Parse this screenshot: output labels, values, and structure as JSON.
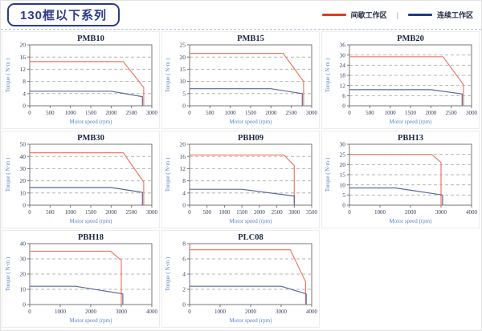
{
  "page": {
    "title": "130框以下系列"
  },
  "legend": {
    "items": [
      {
        "label": "间歇工作区",
        "color": "#e23c1c"
      },
      {
        "label": "连续工作区",
        "color": "#1e3a8a"
      }
    ],
    "separator": "|"
  },
  "colors": {
    "accent_blue": "#2b3a8c",
    "line_red": "#ed7a66",
    "line_blue": "#5a6899",
    "grid": "#b6b6b6",
    "frame": "#777777",
    "tick_text": "#39425e",
    "axis_label": "#5b84c8",
    "title_text": "#1c2742"
  },
  "chart_data": [
    {
      "type": "line",
      "title": "PMB10",
      "xlabel": "Motor speed (rpm)",
      "ylabel": "Torque ( N·m )",
      "xlim": [
        0,
        3000
      ],
      "xtick_step": 500,
      "ylim": [
        0,
        20
      ],
      "ytick_step": 4,
      "grid": "horizontal-dashed",
      "legend_position": "page-header",
      "series": [
        {
          "name": "间歇工作区",
          "role": "intermittent",
          "points": [
            [
              0,
              14.5
            ],
            [
              2300,
              14.5
            ],
            [
              2800,
              6
            ],
            [
              2800,
              0
            ]
          ]
        },
        {
          "name": "连续工作区",
          "role": "continuous",
          "points": [
            [
              0,
              4.8
            ],
            [
              2000,
              4.8
            ],
            [
              2770,
              3
            ],
            [
              2770,
              0
            ]
          ]
        }
      ]
    },
    {
      "type": "line",
      "title": "PMB15",
      "xlabel": "Motor speed (rpm)",
      "ylabel": "Torque ( N·m )",
      "xlim": [
        0,
        3000
      ],
      "xtick_step": 500,
      "ylim": [
        0,
        25
      ],
      "ytick_step": 5,
      "grid": "horizontal-dashed",
      "legend_position": "page-header",
      "series": [
        {
          "name": "间歇工作区",
          "role": "intermittent",
          "points": [
            [
              0,
              21.5
            ],
            [
              2300,
              21.5
            ],
            [
              2800,
              10
            ],
            [
              2800,
              0
            ]
          ]
        },
        {
          "name": "连续工作区",
          "role": "continuous",
          "points": [
            [
              0,
              7
            ],
            [
              2000,
              7
            ],
            [
              2770,
              5
            ],
            [
              2770,
              0
            ]
          ]
        }
      ]
    },
    {
      "type": "line",
      "title": "PMB20",
      "xlabel": "Motor speed (rpm)",
      "ylabel": "Torque ( N·m )",
      "xlim": [
        0,
        3000
      ],
      "xtick_step": 500,
      "ylim": [
        0,
        36
      ],
      "ytick_step": 6,
      "grid": "horizontal-dashed",
      "legend_position": "page-header",
      "series": [
        {
          "name": "间歇工作区",
          "role": "intermittent",
          "points": [
            [
              0,
              29
            ],
            [
              2300,
              29
            ],
            [
              2800,
              12.5
            ],
            [
              2800,
              0
            ]
          ]
        },
        {
          "name": "连续工作区",
          "role": "continuous",
          "points": [
            [
              0,
              9.5
            ],
            [
              2000,
              9.5
            ],
            [
              2770,
              7
            ],
            [
              2770,
              0
            ]
          ]
        }
      ]
    },
    {
      "type": "line",
      "title": "PMB30",
      "xlabel": "Motor speed (rpm)",
      "ylabel": "Torque ( N·m )",
      "xlim": [
        0,
        3000
      ],
      "xtick_step": 500,
      "ylim": [
        0,
        50
      ],
      "ytick_step": 10,
      "grid": "horizontal-dashed",
      "legend_position": "page-header",
      "series": [
        {
          "name": "间歇工作区",
          "role": "intermittent",
          "points": [
            [
              0,
              43
            ],
            [
              2300,
              43
            ],
            [
              2800,
              19
            ],
            [
              2800,
              0
            ]
          ]
        },
        {
          "name": "连续工作区",
          "role": "continuous",
          "points": [
            [
              0,
              14.5
            ],
            [
              2000,
              14.5
            ],
            [
              2770,
              10.5
            ],
            [
              2770,
              0
            ]
          ]
        }
      ]
    },
    {
      "type": "line",
      "title": "PBH09",
      "xlabel": "Motor speed (rpm)",
      "ylabel": "Torque ( N·m )",
      "xlim": [
        0,
        3500
      ],
      "xtick_step": 500,
      "ylim": [
        0,
        20
      ],
      "ytick_step": 4,
      "grid": "horizontal-dashed",
      "legend_position": "page-header",
      "series": [
        {
          "name": "间歇工作区",
          "role": "intermittent",
          "points": [
            [
              0,
              16.5
            ],
            [
              2700,
              16.5
            ],
            [
              3000,
              13
            ],
            [
              3000,
              0
            ]
          ]
        },
        {
          "name": "连续工作区",
          "role": "continuous",
          "points": [
            [
              0,
              5.2
            ],
            [
              1500,
              5.2
            ],
            [
              3000,
              3
            ],
            [
              3000,
              0
            ]
          ]
        }
      ]
    },
    {
      "type": "line",
      "title": "PBH13",
      "xlabel": "Motor speed (rpm)",
      "ylabel": "Torque ( N·m )",
      "xlim": [
        0,
        4000
      ],
      "xtick_step": 1000,
      "ylim": [
        0,
        30
      ],
      "ytick_step": 5,
      "grid": "horizontal-dashed",
      "legend_position": "page-header",
      "series": [
        {
          "name": "间歇工作区",
          "role": "intermittent",
          "points": [
            [
              0,
              25
            ],
            [
              2700,
              25
            ],
            [
              3000,
              21
            ],
            [
              3000,
              0
            ]
          ]
        },
        {
          "name": "连续工作区",
          "role": "continuous",
          "points": [
            [
              0,
              8.5
            ],
            [
              1500,
              8.5
            ],
            [
              3050,
              5
            ],
            [
              3050,
              0
            ]
          ]
        }
      ]
    },
    {
      "type": "line",
      "title": "PBH18",
      "xlabel": "Motor speed (rpm)",
      "ylabel": "Torque ( N·m )",
      "xlim": [
        0,
        4000
      ],
      "xtick_step": 1000,
      "ylim": [
        0,
        40
      ],
      "ytick_step": 10,
      "grid": "horizontal-dashed",
      "legend_position": "page-header",
      "series": [
        {
          "name": "间歇工作区",
          "role": "intermittent",
          "points": [
            [
              0,
              35
            ],
            [
              2650,
              35
            ],
            [
              3000,
              29
            ],
            [
              3000,
              0
            ]
          ]
        },
        {
          "name": "连续工作区",
          "role": "continuous",
          "points": [
            [
              0,
              12
            ],
            [
              1500,
              12
            ],
            [
              3050,
              7
            ],
            [
              3050,
              0
            ]
          ]
        }
      ]
    },
    {
      "type": "line",
      "title": "PLC08",
      "xlabel": "Motor speed (rpm)",
      "ylabel": "Torque ( N·m )",
      "xlim": [
        0,
        4000
      ],
      "xtick_step": 1000,
      "ylim": [
        0,
        8
      ],
      "ytick_step": 2,
      "grid": "horizontal-dashed",
      "legend_position": "page-header",
      "series": [
        {
          "name": "间歇工作区",
          "role": "intermittent",
          "points": [
            [
              0,
              7.2
            ],
            [
              3300,
              7.2
            ],
            [
              3800,
              3
            ],
            [
              3800,
              0
            ]
          ]
        },
        {
          "name": "连续工作区",
          "role": "continuous",
          "points": [
            [
              0,
              2.4
            ],
            [
              3000,
              2.4
            ],
            [
              3820,
              1.4
            ],
            [
              3820,
              0
            ]
          ]
        }
      ]
    }
  ]
}
